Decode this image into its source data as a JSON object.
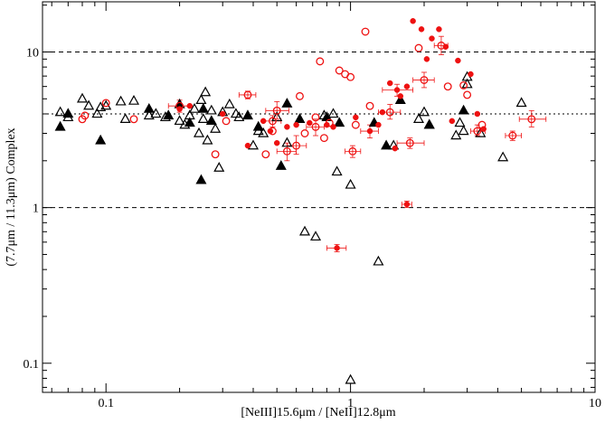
{
  "chart_data": {
    "type": "scatter",
    "xlabel": "[NeIII]15.6μm / [NeII]12.8μm",
    "ylabel": "(7.7μm / 11.3μm) Complex",
    "x_scale": "log",
    "y_scale": "log",
    "xlim": [
      0.055,
      10
    ],
    "ylim": [
      0.065,
      21
    ],
    "x_ticks": [
      {
        "value": 0.1,
        "label": "0.1"
      },
      {
        "value": 1,
        "label": "1"
      },
      {
        "value": 10,
        "label": "10"
      }
    ],
    "y_ticks": [
      {
        "value": 0.1,
        "label": "0.1"
      },
      {
        "value": 1,
        "label": "1"
      },
      {
        "value": 10,
        "label": "10"
      }
    ],
    "grid": false,
    "reference_lines": [
      {
        "y": 10,
        "style": "dashed"
      },
      {
        "y": 4,
        "style": "dotted"
      },
      {
        "y": 1,
        "style": "dashed"
      }
    ],
    "colors": {
      "black_series": "#000000",
      "red_series": "#ee1111"
    },
    "series": [
      {
        "marker": "open-triangle",
        "color": "#000000",
        "points": [
          [
            0.065,
            4.1
          ],
          [
            0.07,
            3.8
          ],
          [
            0.08,
            5.0
          ],
          [
            0.085,
            4.5
          ],
          [
            0.092,
            4.0
          ],
          [
            0.095,
            4.4
          ],
          [
            0.1,
            4.5
          ],
          [
            0.115,
            4.8
          ],
          [
            0.12,
            3.7
          ],
          [
            0.13,
            4.85
          ],
          [
            0.15,
            3.9
          ],
          [
            0.16,
            4.0
          ],
          [
            0.175,
            3.8
          ],
          [
            0.2,
            3.6
          ],
          [
            0.21,
            3.4
          ],
          [
            0.22,
            3.9
          ],
          [
            0.23,
            4.3
          ],
          [
            0.24,
            3.0
          ],
          [
            0.245,
            4.9
          ],
          [
            0.25,
            3.7
          ],
          [
            0.255,
            5.5
          ],
          [
            0.26,
            2.7
          ],
          [
            0.27,
            4.2
          ],
          [
            0.28,
            3.2
          ],
          [
            0.29,
            1.8
          ],
          [
            0.3,
            4.1
          ],
          [
            0.32,
            4.6
          ],
          [
            0.34,
            4.0
          ],
          [
            0.35,
            3.8
          ],
          [
            0.4,
            2.5
          ],
          [
            0.42,
            3.1
          ],
          [
            0.44,
            3.0
          ],
          [
            0.5,
            3.8
          ],
          [
            0.55,
            2.6
          ],
          [
            0.65,
            0.7
          ],
          [
            0.72,
            0.65
          ],
          [
            0.78,
            3.9
          ],
          [
            0.85,
            4.0
          ],
          [
            0.88,
            1.7
          ],
          [
            1.0,
            1.4
          ],
          [
            1.3,
            0.45
          ],
          [
            1.5,
            2.5
          ],
          [
            1.9,
            3.7
          ],
          [
            2.0,
            4.1
          ],
          [
            2.1,
            3.4
          ],
          [
            2.7,
            2.9
          ],
          [
            2.8,
            3.5
          ],
          [
            2.9,
            3.1
          ],
          [
            3.0,
            6.2
          ],
          [
            3.0,
            6.9
          ],
          [
            3.4,
            3.0
          ],
          [
            4.2,
            2.1
          ],
          [
            5.0,
            4.7
          ],
          [
            1.0,
            0.078
          ]
        ]
      },
      {
        "marker": "filled-triangle",
        "color": "#000000",
        "points": [
          [
            0.065,
            3.3
          ],
          [
            0.07,
            4.0
          ],
          [
            0.095,
            2.7
          ],
          [
            0.15,
            4.3
          ],
          [
            0.18,
            3.9
          ],
          [
            0.2,
            4.6
          ],
          [
            0.22,
            3.5
          ],
          [
            0.245,
            1.5
          ],
          [
            0.25,
            4.3
          ],
          [
            0.27,
            3.6
          ],
          [
            0.38,
            3.9
          ],
          [
            0.42,
            3.3
          ],
          [
            0.52,
            1.85
          ],
          [
            0.55,
            4.65
          ],
          [
            0.62,
            3.7
          ],
          [
            0.8,
            3.8
          ],
          [
            0.9,
            3.5
          ],
          [
            1.25,
            3.5
          ],
          [
            1.4,
            2.5
          ],
          [
            1.6,
            4.9
          ],
          [
            2.1,
            3.4
          ],
          [
            2.9,
            4.2
          ]
        ]
      },
      {
        "marker": "open-circle",
        "color": "#ee1111",
        "points": [
          [
            0.08,
            3.7
          ],
          [
            0.082,
            3.9
          ],
          [
            0.1,
            4.7
          ],
          [
            0.13,
            3.7
          ],
          [
            0.2,
            4.5
          ],
          [
            0.28,
            2.2
          ],
          [
            0.31,
            3.6
          ],
          [
            0.38,
            5.3
          ],
          [
            0.45,
            2.2
          ],
          [
            0.48,
            3.6
          ],
          [
            0.5,
            4.2
          ],
          [
            0.55,
            2.3
          ],
          [
            0.6,
            2.5
          ],
          [
            0.62,
            5.2
          ],
          [
            0.65,
            3.0
          ],
          [
            0.72,
            3.3
          ],
          [
            0.75,
            8.7
          ],
          [
            0.78,
            2.8
          ],
          [
            0.82,
            3.5
          ],
          [
            0.9,
            7.6
          ],
          [
            0.95,
            7.2
          ],
          [
            1.0,
            6.9
          ],
          [
            1.02,
            2.3
          ],
          [
            1.05,
            3.4
          ],
          [
            1.15,
            13.5
          ],
          [
            1.2,
            4.5
          ],
          [
            1.45,
            4.1
          ],
          [
            1.75,
            2.6
          ],
          [
            1.9,
            10.6
          ],
          [
            2.0,
            6.6
          ],
          [
            2.5,
            6.0
          ],
          [
            2.9,
            6.1
          ],
          [
            3.0,
            5.3
          ],
          [
            3.3,
            3.1
          ],
          [
            3.45,
            3.4
          ],
          [
            4.6,
            2.9
          ],
          [
            5.5,
            3.7
          ],
          [
            2.35,
            11.0
          ],
          [
            0.48,
            3.1
          ],
          [
            0.72,
            3.8
          ]
        ]
      },
      {
        "marker": "filled-circle",
        "color": "#ee1111",
        "points": [
          [
            0.2,
            4.3
          ],
          [
            0.22,
            4.5
          ],
          [
            0.3,
            4.0
          ],
          [
            0.38,
            2.5
          ],
          [
            0.44,
            3.6
          ],
          [
            0.47,
            3.1
          ],
          [
            0.5,
            2.6
          ],
          [
            0.55,
            3.3
          ],
          [
            0.6,
            3.4
          ],
          [
            0.68,
            3.5
          ],
          [
            0.8,
            3.4
          ],
          [
            0.85,
            3.3
          ],
          [
            0.88,
            0.55
          ],
          [
            1.05,
            3.8
          ],
          [
            1.2,
            3.1
          ],
          [
            1.3,
            3.4
          ],
          [
            1.35,
            4.1
          ],
          [
            1.45,
            6.3
          ],
          [
            1.55,
            5.7
          ],
          [
            1.6,
            5.2
          ],
          [
            1.7,
            1.05
          ],
          [
            1.7,
            6.0
          ],
          [
            1.8,
            15.8
          ],
          [
            1.95,
            14.0
          ],
          [
            2.05,
            9.0
          ],
          [
            2.15,
            12.2
          ],
          [
            2.3,
            14.0
          ],
          [
            2.45,
            10.8
          ],
          [
            2.75,
            8.8
          ],
          [
            3.1,
            7.2
          ],
          [
            3.3,
            4.0
          ],
          [
            3.5,
            3.2
          ],
          [
            1.52,
            2.4
          ],
          [
            2.6,
            3.6
          ]
        ]
      }
    ],
    "error_bars": [
      {
        "x": 0.38,
        "y": 5.3,
        "xlo": 0.35,
        "xhi": 0.41,
        "ylo": 5.0,
        "yhi": 5.6
      },
      {
        "x": 0.2,
        "y": 4.5,
        "xlo": 0.18,
        "xhi": 0.22,
        "ylo": 4.1,
        "yhi": 4.9
      },
      {
        "x": 0.5,
        "y": 4.2,
        "xlo": 0.45,
        "xhi": 0.56,
        "ylo": 3.7,
        "yhi": 4.8
      },
      {
        "x": 0.55,
        "y": 2.3,
        "xlo": 0.5,
        "xhi": 0.6,
        "ylo": 2.0,
        "yhi": 2.6
      },
      {
        "x": 0.6,
        "y": 2.5,
        "xlo": 0.55,
        "xhi": 0.66,
        "ylo": 2.2,
        "yhi": 2.9
      },
      {
        "x": 0.72,
        "y": 3.3,
        "xlo": 0.66,
        "xhi": 0.78,
        "ylo": 2.9,
        "yhi": 3.7
      },
      {
        "x": 0.88,
        "y": 0.55,
        "xlo": 0.8,
        "xhi": 0.96,
        "ylo": 0.52,
        "yhi": 0.58
      },
      {
        "x": 1.02,
        "y": 2.3,
        "xlo": 0.95,
        "xhi": 1.1,
        "ylo": 2.1,
        "yhi": 2.5
      },
      {
        "x": 1.45,
        "y": 4.1,
        "xlo": 1.3,
        "xhi": 1.6,
        "ylo": 3.7,
        "yhi": 4.6
      },
      {
        "x": 1.55,
        "y": 5.7,
        "xlo": 1.35,
        "xhi": 1.8,
        "ylo": 5.2,
        "yhi": 6.2
      },
      {
        "x": 1.7,
        "y": 1.05,
        "xlo": 1.62,
        "xhi": 1.78,
        "ylo": 1.0,
        "yhi": 1.1
      },
      {
        "x": 1.75,
        "y": 2.6,
        "xlo": 1.55,
        "xhi": 2.0,
        "ylo": 2.4,
        "yhi": 2.8
      },
      {
        "x": 2.0,
        "y": 6.6,
        "xlo": 1.8,
        "xhi": 2.2,
        "ylo": 5.9,
        "yhi": 7.4
      },
      {
        "x": 2.35,
        "y": 11.0,
        "xlo": 2.2,
        "xhi": 2.5,
        "ylo": 9.6,
        "yhi": 12.6
      },
      {
        "x": 3.3,
        "y": 3.1,
        "xlo": 3.1,
        "xhi": 3.55,
        "ylo": 2.9,
        "yhi": 3.4
      },
      {
        "x": 4.6,
        "y": 2.9,
        "xlo": 4.3,
        "xhi": 5.0,
        "ylo": 2.7,
        "yhi": 3.1
      },
      {
        "x": 5.5,
        "y": 3.7,
        "xlo": 4.9,
        "xhi": 6.3,
        "ylo": 3.3,
        "yhi": 4.2
      },
      {
        "x": 0.48,
        "y": 3.6,
        "xlo": 0.44,
        "xhi": 0.52,
        "ylo": 3.3,
        "yhi": 3.9
      },
      {
        "x": 1.2,
        "y": 3.1,
        "xlo": 1.1,
        "xhi": 1.3,
        "ylo": 2.8,
        "yhi": 3.4
      }
    ]
  }
}
